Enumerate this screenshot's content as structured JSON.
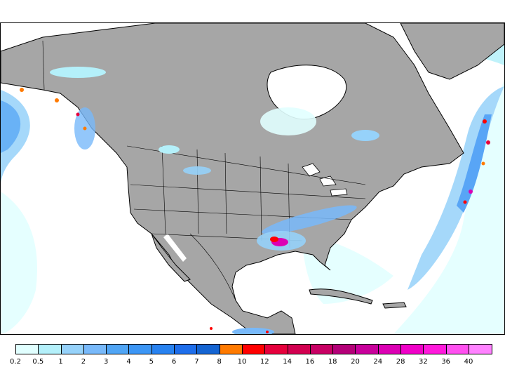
{
  "map": {
    "region": "North America",
    "ocean_color": "#ffffff",
    "land_color": "#a6a6a6",
    "outline_color": "#000000"
  },
  "legend": {
    "ticks": [
      "0.2",
      "0.5",
      "1",
      "2",
      "3",
      "4",
      "5",
      "6",
      "7",
      "8",
      "10",
      "12",
      "14",
      "16",
      "18",
      "20",
      "24",
      "28",
      "32",
      "36",
      "40"
    ],
    "colors": [
      "#e1ffff",
      "#b4f0fa",
      "#96d2fa",
      "#78b9fa",
      "#50a5f5",
      "#3c96f5",
      "#2882f0",
      "#1e6eeb",
      "#1464d2",
      "#ff7a00",
      "#ff0000",
      "#e6003c",
      "#d20050",
      "#c80064",
      "#b40078",
      "#c8009b",
      "#dc00b4",
      "#f000c8",
      "#ff19dc",
      "#ff50f0",
      "#ff82ff"
    ]
  }
}
